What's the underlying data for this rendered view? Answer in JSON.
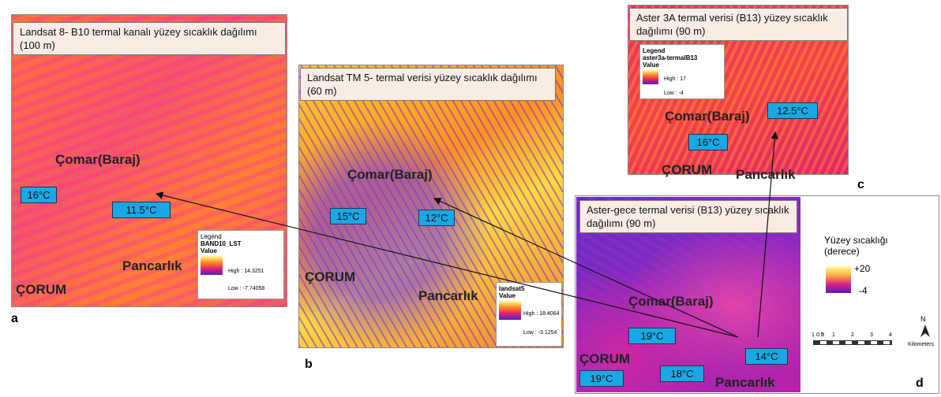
{
  "panels": [
    {
      "letter": "a",
      "title": "Landsat 8- B10 termal kanalı yüzey sıcaklık dağılımı (100 m)",
      "places": [
        "Çomar(Baraj)",
        "Pancarlık",
        "ÇORUM"
      ],
      "temps": [
        "16°C",
        "11.5°C"
      ],
      "legend": {
        "heading": "Legend",
        "layer": "BAND10_LST",
        "field": "Value",
        "high": "High : 14.3251",
        "low": "Low : -7.74058"
      }
    },
    {
      "letter": "b",
      "title": "Landsat TM 5- termal verisi yüzey sıcaklık dağılımı (60 m)",
      "places": [
        "Çomar(Baraj)",
        "ÇORUM",
        "Pancarlık"
      ],
      "temps": [
        "15°C",
        "12°C"
      ],
      "legend": {
        "layer": "landsat5",
        "field": "Value",
        "high": "High : 18.4064",
        "low": "Low : -3.1254"
      }
    },
    {
      "letter": "c",
      "title": "Aster 3A  termal verisi (B13) yüzey sıcaklık dağılımı (90 m)",
      "places": [
        "Çomar(Baraj)",
        "ÇORUM",
        "Pancarlık"
      ],
      "temps": [
        "12.5°C",
        "16°C"
      ],
      "legend": {
        "heading": "Legend",
        "layer": "aster3a-termalB13",
        "field": "Value",
        "high": "High : 17",
        "low": "Low : -4"
      }
    },
    {
      "letter": "d",
      "title": "Aster-gece termal verisi (B13) yüzey sıcaklık dağılımı (90 m)",
      "places": [
        "Çomar(Baraj)",
        "ÇORUM",
        "Pancarlık"
      ],
      "temps": [
        "19°C",
        "14°C",
        "18°C",
        "19°C"
      ],
      "legend": {
        "title": "Yüzey sıcaklığı (derece)",
        "high": "+20",
        "low": "-4"
      }
    }
  ],
  "scale": {
    "labels": [
      "1",
      "0.5",
      "0",
      "1",
      "2",
      "3",
      "4"
    ],
    "unit": "Kilometers",
    "north": "N"
  }
}
